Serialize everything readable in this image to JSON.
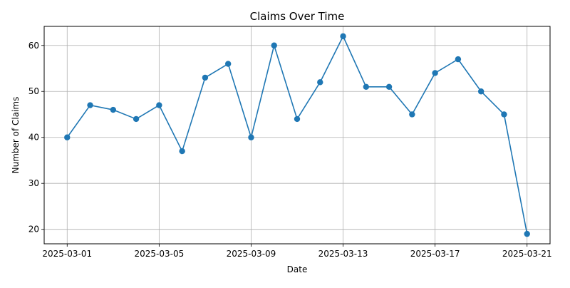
{
  "chart_data": {
    "type": "line",
    "title": "Claims Over Time",
    "xlabel": "Date",
    "ylabel": "Number of Claims",
    "x": [
      "2025-03-01",
      "2025-03-02",
      "2025-03-03",
      "2025-03-04",
      "2025-03-05",
      "2025-03-06",
      "2025-03-07",
      "2025-03-08",
      "2025-03-09",
      "2025-03-10",
      "2025-03-11",
      "2025-03-12",
      "2025-03-13",
      "2025-03-14",
      "2025-03-15",
      "2025-03-16",
      "2025-03-17",
      "2025-03-18",
      "2025-03-19",
      "2025-03-20",
      "2025-03-21"
    ],
    "series": [
      {
        "values": [
          40,
          47,
          46,
          44,
          47,
          37,
          53,
          56,
          40,
          60,
          44,
          52,
          62,
          51,
          51,
          45,
          54,
          57,
          50,
          45,
          19
        ]
      }
    ],
    "x_ticks": [
      "2025-03-01",
      "2025-03-05",
      "2025-03-09",
      "2025-03-13",
      "2025-03-17",
      "2025-03-21"
    ],
    "y_ticks": [
      20,
      30,
      40,
      50,
      60
    ],
    "ylim": [
      16.85,
      64.15
    ],
    "xlim": [
      "2025-02-28",
      "2025-03-22"
    ],
    "grid": true,
    "marker": "circle",
    "line_color": "#1f77b4"
  }
}
